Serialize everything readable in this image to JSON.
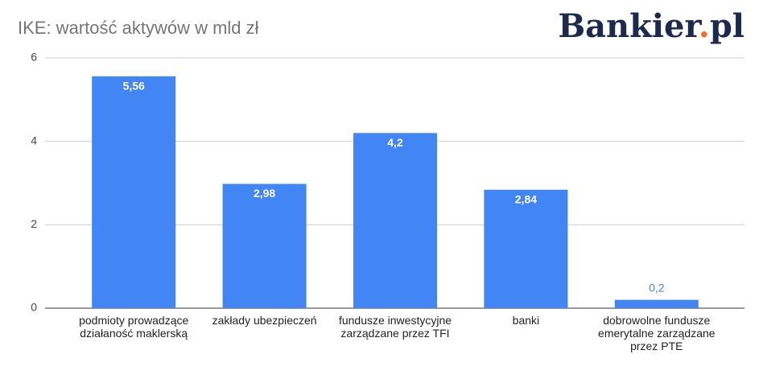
{
  "chart_data": {
    "type": "bar",
    "title": "IKE: wartość aktywów w mld zł",
    "logo": [
      "Bankier",
      ".",
      "pl"
    ],
    "categories": [
      "podmioty prowadzące działaność maklerską",
      "zakłady ubezpieczeń",
      "fundusze inwestycyjne zarządzane przez TFI",
      "banki",
      "dobrowolne fundusze emerytalne zarządzane przez PTE"
    ],
    "values": [
      5.56,
      2.98,
      4.2,
      2.84,
      0.2
    ],
    "value_labels": [
      "5,56",
      "2,98",
      "4,2",
      "2,84",
      "0,2"
    ],
    "color": "#4285f4",
    "ylim": [
      0,
      6
    ],
    "yticks": [
      0,
      2,
      4,
      6
    ],
    "grid": true
  }
}
